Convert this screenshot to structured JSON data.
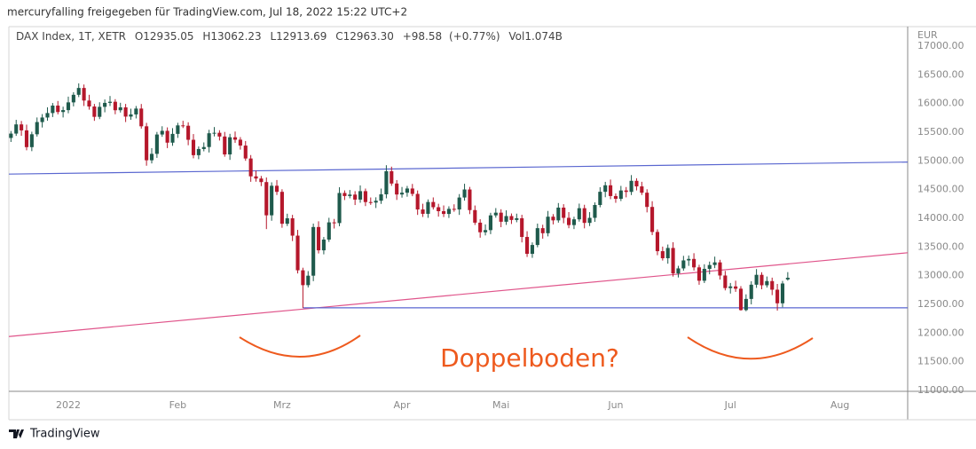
{
  "header": "mercuryfalling freigegeben für TradingView.com, Jul 18, 2022 15:22 UTC+2",
  "footer": "TradingView",
  "chart_data": {
    "type": "candlestick",
    "title": "DAX Index, 1T, XETR",
    "legend_values": [
      "O12935.05",
      "H13062.23",
      "L12913.69",
      "C12963.30",
      "+98.58",
      "(+0.77%)",
      "Vol1.074B"
    ],
    "currency": "EUR",
    "up_color": "#1f5a4c",
    "down_color": "#b5172b",
    "open": [
      15400,
      15476,
      15636,
      15532,
      15240,
      15464,
      15677,
      15756,
      15834,
      15964,
      15852,
      15885,
      16020,
      16152,
      16271,
      16052,
      15948,
      15768,
      15942,
      16011,
      16031,
      15883,
      15933,
      15772,
      15810,
      15912,
      15603,
      15011,
      15123,
      15460,
      15524,
      15318,
      15471,
      15619,
      15613,
      15368,
      15100,
      15207,
      15242,
      15482,
      15490,
      15425,
      15113,
      15412,
      15370,
      15267,
      15042,
      14731,
      14693,
      14631,
      14052,
      14567,
      14461,
      13905,
      14000,
      13698,
      13094,
      12835,
      13000,
      13848,
      13442,
      13629,
      13929,
      13917,
      14441,
      14388,
      14413,
      14326,
      14473,
      14283,
      14274,
      14306,
      14418,
      14820,
      14606,
      14415,
      14446,
      14519,
      14425,
      14154,
      14078,
      14284,
      14193,
      14124,
      14076,
      14164,
      14154,
      14362,
      14502,
      14143,
      13924,
      13757,
      13794,
      14051,
      14098,
      13940,
      14039,
      13971,
      14001,
      13675,
      13381,
      13535,
      13828,
      13740,
      14028,
      13964,
      14186,
      14008,
      13882,
      13982,
      14176,
      13920,
      14008,
      14232,
      14462,
      14575,
      14388,
      14340,
      14485,
      14460,
      14653,
      14556,
      14446,
      14198,
      13762,
      13427,
      13304,
      13483,
      13039,
      13127,
      13266,
      13292,
      13145,
      12912,
      13119,
      13186,
      13232,
      13003,
      12784,
      12813,
      12773,
      12401,
      12595,
      12843,
      13015,
      12833,
      12906,
      12756,
      12519,
      12935.05
    ],
    "high": [
      15521,
      15716,
      15696,
      15632,
      15509,
      15757,
      15816,
      15934,
      16009,
      16044,
      15945,
      16120,
      16197,
      16351,
      16331,
      16152,
      15993,
      16022,
      16071,
      16131,
      16076,
      16013,
      15993,
      15910,
      15957,
      15992,
      15663,
      15223,
      15505,
      15604,
      15584,
      15571,
      15664,
      15699,
      15673,
      15468,
      15252,
      15322,
      15542,
      15590,
      15535,
      15505,
      15472,
      15512,
      15415,
      15347,
      15102,
      14831,
      14738,
      14711,
      14627,
      14667,
      14506,
      14080,
      14060,
      13798,
      13139,
      13080,
      13908,
      13948,
      13674,
      14009,
      13989,
      14541,
      14486,
      14493,
      14473,
      14573,
      14518,
      14363,
      14366,
      14518,
      14925,
      14900,
      14666,
      14546,
      14564,
      14599,
      14485,
      14254,
      14329,
      14364,
      14253,
      14224,
      14209,
      14244,
      14422,
      14602,
      14547,
      14223,
      13984,
      13894,
      14096,
      14178,
      14158,
      14139,
      14084,
      14081,
      14061,
      13775,
      13580,
      13908,
      13888,
      14128,
      14073,
      14266,
      14246,
      14108,
      14027,
      14256,
      14236,
      14108,
      14277,
      14542,
      14635,
      14675,
      14433,
      14565,
      14545,
      14753,
      14698,
      14636,
      14506,
      14298,
      13807,
      13507,
      13543,
      13583,
      13172,
      13346,
      13352,
      13392,
      13190,
      13199,
      13246,
      13332,
      13277,
      13083,
      12873,
      12913,
      12818,
      12675,
      12903,
      13115,
      13060,
      12986,
      12966,
      12856,
      12909,
      13062.23
    ],
    "low": [
      15330,
      15436,
      15437,
      15185,
      15170,
      15424,
      15582,
      15701,
      15764,
      15812,
      15757,
      15830,
      15950,
      16112,
      15957,
      15893,
      15698,
      15728,
      15847,
      15956,
      15813,
      15843,
      15677,
      15717,
      15740,
      15563,
      14916,
      14956,
      15053,
      15420,
      15223,
      15263,
      15401,
      15573,
      15273,
      15045,
      15030,
      15167,
      15147,
      15427,
      15355,
      15073,
      15018,
      15315,
      15197,
      15002,
      14636,
      14638,
      14561,
      13812,
      13957,
      14406,
      13835,
      13865,
      13603,
      13039,
      12439,
      12795,
      12905,
      13387,
      13372,
      13589,
      13822,
      13862,
      14318,
      14348,
      14231,
      14271,
      14213,
      14234,
      14179,
      14251,
      14348,
      14566,
      14320,
      14360,
      14376,
      14385,
      14059,
      14023,
      14008,
      14153,
      14029,
      14021,
      14006,
      14114,
      14059,
      14307,
      14073,
      13884,
      13662,
      13702,
      13724,
      14011,
      13845,
      13885,
      13901,
      13931,
      13580,
      13326,
      13311,
      13495,
      13645,
      13685,
      13894,
      13924,
      13913,
      13827,
      13812,
      13942,
      13825,
      13865,
      13938,
      14192,
      14367,
      14333,
      14270,
      14300,
      14365,
      14405,
      14486,
      14406,
      14103,
      13707,
      13357,
      13264,
      13209,
      12984,
      12969,
      13087,
      13171,
      13090,
      12842,
      12872,
      13024,
      13131,
      12933,
      12744,
      12689,
      12718,
      12390,
      12380,
      12500,
      12788,
      12763,
      12793,
      12661,
      12391,
      12449,
      12913.69
    ],
    "close": [
      15476,
      15636,
      15532,
      15240,
      15464,
      15677,
      15756,
      15834,
      15964,
      15852,
      15885,
      16020,
      16152,
      16271,
      16052,
      15948,
      15768,
      15942,
      16011,
      16031,
      15883,
      15933,
      15772,
      15810,
      15912,
      15603,
      15011,
      15123,
      15460,
      15524,
      15318,
      15471,
      15619,
      15613,
      15368,
      15100,
      15207,
      15242,
      15482,
      15490,
      15425,
      15113,
      15412,
      15370,
      15267,
      15042,
      14731,
      14693,
      14631,
      14052,
      14567,
      14461,
      13905,
      14000,
      13698,
      13094,
      12835,
      13000,
      13848,
      13442,
      13629,
      13929,
      13917,
      14441,
      14388,
      14413,
      14326,
      14473,
      14283,
      14274,
      14306,
      14418,
      14820,
      14606,
      14415,
      14446,
      14519,
      14425,
      14154,
      14078,
      14284,
      14193,
      14124,
      14076,
      14164,
      14154,
      14362,
      14502,
      14143,
      13924,
      13757,
      13794,
      14051,
      14098,
      13940,
      14039,
      13971,
      14001,
      13675,
      13381,
      13535,
      13828,
      13740,
      14028,
      13964,
      14186,
      14008,
      13882,
      13982,
      14176,
      13920,
      14008,
      14232,
      14462,
      14575,
      14388,
      14340,
      14485,
      14460,
      14653,
      14556,
      14446,
      14198,
      13762,
      13427,
      13304,
      13483,
      13039,
      13127,
      13266,
      13292,
      13145,
      12912,
      13119,
      13186,
      13232,
      13003,
      12784,
      12813,
      12773,
      12401,
      12595,
      12843,
      13015,
      12833,
      12906,
      12756,
      12519,
      12864,
      12963.3
    ],
    "xlim": [
      -0.4,
      172
    ],
    "xticks": [
      {
        "value": 11,
        "label": "2022"
      },
      {
        "value": 32,
        "label": "Feb"
      },
      {
        "value": 52,
        "label": "Mrz"
      },
      {
        "value": 75,
        "label": "Apr"
      },
      {
        "value": 94,
        "label": "Mai"
      },
      {
        "value": 116,
        "label": "Jun"
      },
      {
        "value": 138,
        "label": "Jul"
      },
      {
        "value": 159,
        "label": "Aug"
      }
    ],
    "ylim": [
      10985,
      17340
    ],
    "yticks": [
      {
        "value": 11000,
        "label": "11000.00"
      },
      {
        "value": 11500,
        "label": "11500.00"
      },
      {
        "value": 12000,
        "label": "12000.00"
      },
      {
        "value": 12500,
        "label": "12500.00"
      },
      {
        "value": 13000,
        "label": "13000.00"
      },
      {
        "value": 13500,
        "label": "13500.00"
      },
      {
        "value": 14000,
        "label": "14000.00"
      },
      {
        "value": 14500,
        "label": "14500.00"
      },
      {
        "value": 15000,
        "label": "15000.00"
      },
      {
        "value": 15500,
        "label": "15500.00"
      },
      {
        "value": 16000,
        "label": "16000.00"
      },
      {
        "value": 16500,
        "label": "16500.00"
      },
      {
        "value": 17000,
        "label": "17000.00"
      }
    ],
    "trendlines": [
      {
        "color": "#5a67d0",
        "x": [
          -0.4,
          172
        ],
        "y": [
          14770,
          14980
        ]
      },
      {
        "color": "#e0558b",
        "x": [
          -0.4,
          172
        ],
        "y": [
          11940,
          13400
        ]
      },
      {
        "color": "#5a67d0",
        "x": [
          56,
          172
        ],
        "y": [
          12440,
          12440
        ]
      }
    ],
    "annotation": "Doppelboden?",
    "annotation_color": "#ee5a1e"
  }
}
